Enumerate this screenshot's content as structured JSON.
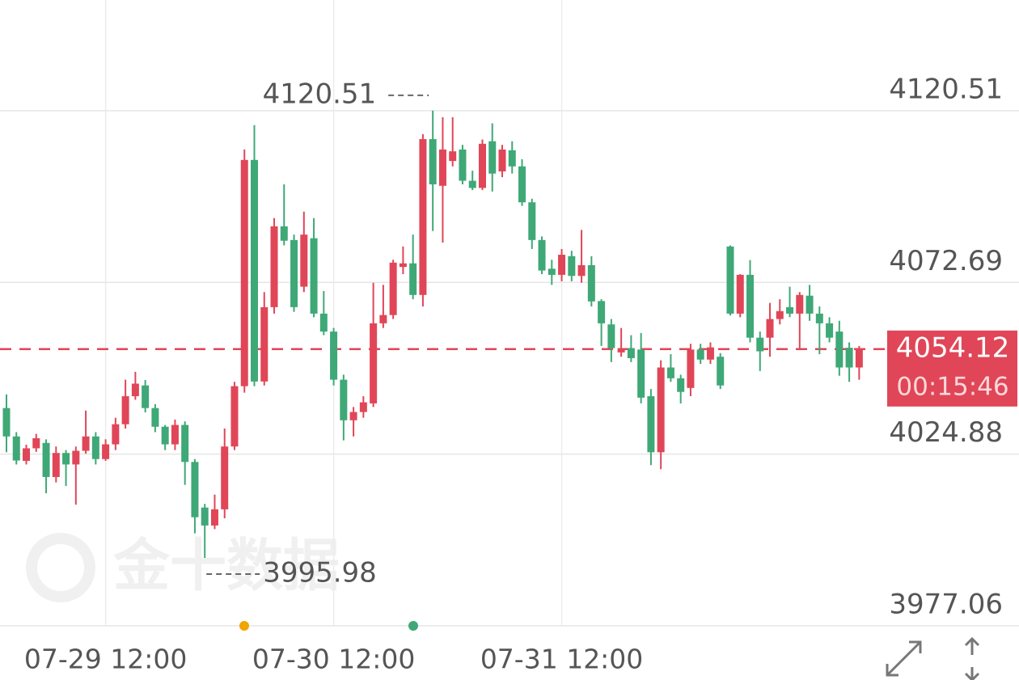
{
  "chart_data": {
    "type": "candlestick",
    "watermark": "金十数据",
    "categories": [
      null,
      null,
      null,
      null,
      null,
      null,
      null,
      null,
      null,
      null,
      "07-29 12:00",
      null,
      null,
      null,
      null,
      null,
      null,
      null,
      null,
      null,
      null,
      null,
      null,
      null,
      null,
      null,
      null,
      null,
      null,
      null,
      null,
      null,
      null,
      "07-30 12:00",
      null,
      null,
      null,
      null,
      null,
      null,
      null,
      null,
      null,
      null,
      null,
      null,
      null,
      null,
      null,
      null,
      null,
      null,
      null,
      null,
      null,
      null,
      "07-31 12:00",
      null,
      null,
      null,
      null,
      null,
      null,
      null,
      null,
      null,
      null,
      null,
      null,
      null,
      null,
      null,
      null,
      null,
      null,
      null,
      null,
      null,
      null,
      null,
      null,
      null,
      null,
      null,
      null,
      null,
      null
    ],
    "open": [
      4037.7,
      4029.8,
      4023.0,
      4026.5,
      4028.0,
      4018.5,
      4025.2,
      4022.0,
      4025.8,
      4029.8,
      4023.5,
      4027.6,
      4033.2,
      4041.0,
      4044.0,
      4037.7,
      4032.5,
      4027.6,
      4033.0,
      4022.7,
      4010.0,
      4005.0,
      4009.5,
      4027.0,
      4043.8,
      4106.8,
      4045.1,
      4065.8,
      4088.3,
      4084.5,
      4071.5,
      4085.0,
      4064.0,
      4059.0,
      4045.6,
      4034.3,
      4036.6,
      4039.0,
      4061.3,
      4063.6,
      4077.0,
      4078.0,
      4069.2,
      4112.6,
      4099.6,
      4106.5,
      4109.7,
      4101.0,
      4099.0,
      4112.0,
      4103.6,
      4109.5,
      4105.0,
      4095.0,
      4084.5,
      4076.5,
      4074.8,
      4080.0,
      4074.5,
      4077.5,
      4067.5,
      4061.0,
      4053.2,
      4054.4,
      4054.0,
      4041.0,
      4025.4,
      4049.0,
      4046.0,
      4043.3,
      4054.0,
      4051.2,
      4052.0,
      4082.7,
      4064.0,
      4074.8,
      4057.3,
      4057.3,
      4062.5,
      4065.8,
      4064.0,
      4069.0,
      4064.0,
      4061.3,
      4059.0,
      4054.5,
      4049.0
    ],
    "high": [
      4041.5,
      4031.0,
      4027.5,
      4030.5,
      4029.0,
      4027.0,
      4026.0,
      4027.0,
      4037.0,
      4031.0,
      4029.0,
      4035.0,
      4045.6,
      4047.8,
      4045.5,
      4038.8,
      4033.0,
      4034.5,
      4034.0,
      4023.5,
      4011.0,
      4013.6,
      4032.0,
      4045.0,
      4109.7,
      4116.5,
      4070.0,
      4090.6,
      4100.0,
      4086.0,
      4092.4,
      4090.6,
      4070.3,
      4060.0,
      4047.0,
      4038.0,
      4041.0,
      4072.6,
      4072.0,
      4079.0,
      4082.7,
      4086.0,
      4114.0,
      4120.51,
      4118.7,
      4118.7,
      4111.0,
      4103.8,
      4112.5,
      4117.0,
      4111.0,
      4112.0,
      4107.0,
      4096.0,
      4085.5,
      4079.0,
      4082.0,
      4081.5,
      4087.3,
      4080.0,
      4068.0,
      4062.5,
      4060.0,
      4058.0,
      4058.6,
      4043.0,
      4051.0,
      4052.7,
      4047.0,
      4055.6,
      4055.6,
      4056.0,
      4053.0,
      4083.0,
      4075.0,
      4078.9,
      4059.0,
      4067.0,
      4068.0,
      4071.5,
      4070.0,
      4072.0,
      4066.0,
      4063.0,
      4062.0,
      4056.0,
      4055.0
    ],
    "low": [
      4025.4,
      4022.0,
      4022.0,
      4025.5,
      4014.0,
      4017.0,
      4016.0,
      4010.8,
      4025.0,
      4022.0,
      4023.0,
      4026.0,
      4032.0,
      4040.0,
      4036.5,
      4031.0,
      4026.0,
      4026.0,
      4016.3,
      4002.8,
      3995.98,
      4004.0,
      4007.0,
      4026.0,
      4042.0,
      4043.8,
      4044.0,
      4064.0,
      4083.0,
      4064.5,
      4070.0,
      4063.0,
      4058.0,
      4044.0,
      4028.7,
      4029.8,
      4035.0,
      4038.0,
      4060.0,
      4062.5,
      4075.0,
      4068.0,
      4066.0,
      4087.0,
      4083.8,
      4105.0,
      4100.0,
      4098.4,
      4098.4,
      4098.0,
      4102.0,
      4103.0,
      4094.0,
      4082.0,
      4075.0,
      4072.0,
      4073.0,
      4073.0,
      4072.6,
      4066.0,
      4055.0,
      4050.5,
      4052.0,
      4050.5,
      4039.0,
      4021.8,
      4020.7,
      4045.0,
      4039.0,
      4041.0,
      4050.0,
      4050.0,
      4043.0,
      4063.5,
      4063.0,
      4056.0,
      4048.0,
      4052.0,
      4061.0,
      4063.0,
      4054.0,
      4062.0,
      4052.7,
      4056.0,
      4046.7,
      4045.0,
      4045.6
    ],
    "close": [
      4029.8,
      4023.1,
      4026.5,
      4029.3,
      4018.5,
      4025.2,
      4022.0,
      4025.8,
      4029.8,
      4023.5,
      4027.6,
      4033.2,
      4041.0,
      4044.5,
      4037.7,
      4032.5,
      4027.6,
      4033.0,
      4022.7,
      4007.3,
      4005.0,
      4009.5,
      4027.0,
      4043.8,
      4106.8,
      4045.1,
      4065.8,
      4088.3,
      4084.3,
      4065.8,
      4086.0,
      4064.0,
      4059.0,
      4045.6,
      4034.3,
      4036.6,
      4039.3,
      4061.3,
      4063.6,
      4078.2,
      4078.0,
      4069.2,
      4112.6,
      4100.0,
      4109.7,
      4109.2,
      4101.0,
      4099.0,
      4111.3,
      4103.0,
      4109.7,
      4105.0,
      4095.0,
      4084.5,
      4076.0,
      4074.8,
      4080.4,
      4074.5,
      4077.5,
      4067.4,
      4061.3,
      4054.4,
      4054.4,
      4051.6,
      4040.6,
      4025.4,
      4049.0,
      4046.0,
      4042.2,
      4054.0,
      4051.2,
      4054.6,
      4044.0,
      4064.0,
      4074.8,
      4057.3,
      4053.5,
      4062.5,
      4064.7,
      4064.0,
      4069.2,
      4064.0,
      4061.3,
      4057.3,
      4049.0,
      4049.0,
      4054.12
    ],
    "up_color": "#e04657",
    "down_color": "#3fa877",
    "ylim": [
      3977.06,
      4151.34
    ],
    "yticks": [
      4120.51,
      4072.69,
      4024.88,
      3977.06
    ],
    "grid": true,
    "max_value": 4120.51,
    "min_value": 3995.98,
    "current_price": 4054.12,
    "countdown": "00:15:46"
  }
}
